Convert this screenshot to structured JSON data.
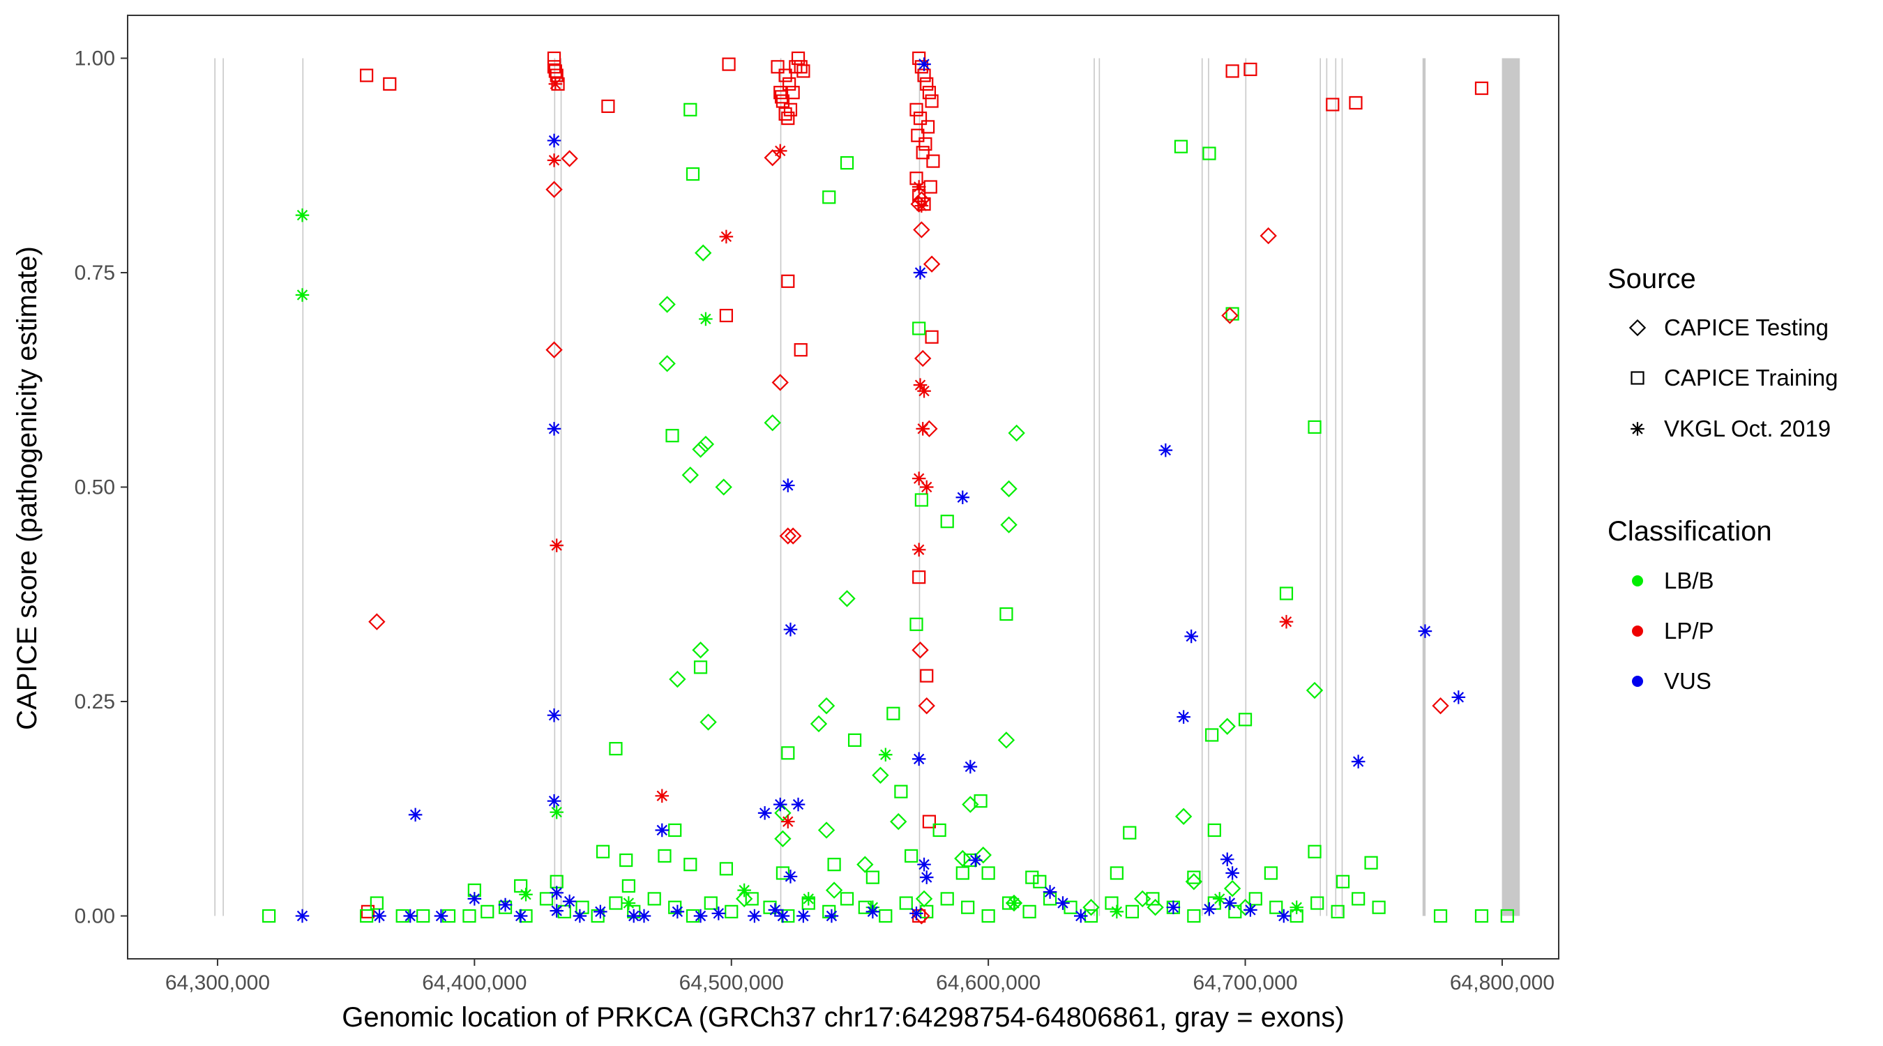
{
  "chart_data": {
    "type": "scatter",
    "title": "",
    "xlabel": "Genomic location of PRKCA (GRCh37 chr17:64298754-64806861, gray = exons)",
    "ylabel": "CAPICE score (pathogenicity estimate)",
    "xlim": [
      64265000,
      64822000
    ],
    "ylim": [
      -0.05,
      1.05
    ],
    "x_ticks": [
      64300000,
      64400000,
      64500000,
      64600000,
      64700000,
      64800000
    ],
    "x_tick_labels": [
      "64,300,000",
      "64,400,000",
      "64,500,000",
      "64,600,000",
      "64,700,000",
      "64,800,000"
    ],
    "y_ticks": [
      0,
      0.25,
      0.5,
      0.75,
      1.0
    ],
    "y_tick_labels": [
      "0.00",
      "0.25",
      "0.50",
      "0.75",
      "1.00"
    ],
    "grid": false,
    "exons": [
      [
        64298754,
        64299100
      ],
      [
        64302000,
        64302400
      ],
      [
        64333000,
        64333400
      ],
      [
        64431000,
        64431300
      ],
      [
        64433500,
        64433800
      ],
      [
        64519000,
        64519300
      ],
      [
        64573000,
        64573300
      ],
      [
        64641000,
        64641300
      ],
      [
        64643000,
        64643300
      ],
      [
        64683000,
        64683300
      ],
      [
        64685500,
        64685800
      ],
      [
        64700000,
        64700300
      ],
      [
        64729000,
        64729300
      ],
      [
        64731500,
        64731800
      ],
      [
        64735000,
        64735300
      ],
      [
        64737500,
        64737800
      ],
      [
        64769000,
        64770200
      ],
      [
        64799900,
        64806861
      ]
    ],
    "legend": {
      "position": "right",
      "source_title": "Source",
      "source_entries": [
        {
          "label": "CAPICE Testing",
          "shape": "diamond"
        },
        {
          "label": "CAPICE Training",
          "shape": "square"
        },
        {
          "label": "VKGL Oct. 2019",
          "shape": "asterisk"
        }
      ],
      "class_title": "Classification",
      "class_entries": [
        {
          "label": "LB/B",
          "color": "#00ee00"
        },
        {
          "label": "LP/P",
          "color": "#ee0000"
        },
        {
          "label": "VUS",
          "color": "#0000ee"
        }
      ]
    },
    "colors": {
      "LB/B": "#00ee00",
      "LP/P": "#ee0000",
      "VUS": "#0000ee"
    },
    "series": [
      {
        "name": "CAPICE Training LP/P",
        "shape": "square",
        "class": "LP/P",
        "x": [
          64358000,
          64367000,
          64431000,
          64431000,
          64431500,
          64432000,
          64432500,
          64452000,
          64499000,
          64518000,
          64519000,
          64520000,
          64521000,
          64522000,
          64523000,
          64526000,
          64527000,
          64528000,
          64519500,
          64522500,
          64525000,
          64521000,
          64524000,
          64522000,
          64527000,
          64498000,
          64573000,
          64574000,
          64575000,
          64576000,
          64577000,
          64578000,
          64572000,
          64573500,
          64576500,
          64572500,
          64575500,
          64574500,
          64578500,
          64572000,
          64577500,
          64573000,
          64575000,
          64573000,
          64576000,
          64695000,
          64702000,
          64734000,
          64743000,
          64792000,
          64578000,
          64577000,
          64573000,
          64358500
        ],
        "y": [
          0.98,
          0.97,
          1.0,
          0.99,
          0.985,
          0.98,
          0.97,
          0.944,
          0.993,
          0.99,
          0.96,
          0.95,
          0.98,
          0.93,
          0.94,
          1.0,
          0.99,
          0.985,
          0.955,
          0.97,
          0.99,
          0.935,
          0.96,
          0.74,
          0.66,
          0.7,
          1.0,
          0.99,
          0.98,
          0.97,
          0.96,
          0.95,
          0.94,
          0.93,
          0.92,
          0.91,
          0.9,
          0.89,
          0.88,
          0.86,
          0.85,
          0.84,
          0.83,
          0.395,
          0.28,
          0.985,
          0.987,
          0.946,
          0.948,
          0.965,
          0.675,
          0.11,
          0.0,
          0.005
        ]
      },
      {
        "name": "CAPICE Training LB/B",
        "shape": "square",
        "class": "LB/B",
        "x": [
          64320000,
          64358000,
          64362000,
          64372000,
          64380000,
          64390000,
          64398000,
          64405000,
          64412000,
          64420000,
          64428000,
          64435000,
          64442000,
          64448000,
          64455000,
          64462000,
          64470000,
          64478000,
          64485000,
          64492000,
          64500000,
          64508000,
          64515000,
          64522000,
          64530000,
          64538000,
          64545000,
          64552000,
          64560000,
          64568000,
          64576000,
          64584000,
          64592000,
          64600000,
          64608000,
          64616000,
          64624000,
          64632000,
          64640000,
          64648000,
          64656000,
          64664000,
          64672000,
          64680000,
          64688000,
          64696000,
          64704000,
          64712000,
          64720000,
          64728000,
          64736000,
          64744000,
          64752000,
          64776000,
          64792000,
          64802000,
          64484000,
          64485000,
          64545000,
          64538000,
          64477000,
          64455000,
          64488000,
          64522000,
          64548000,
          64566000,
          64572000,
          64574000,
          64573000,
          64584000,
          64597000,
          64607000,
          64675000,
          64686000,
          64695000,
          64700000,
          64716000,
          64727000,
          64687000,
          64655000,
          64593000,
          64563000,
          64581000,
          64478000,
          64450000,
          64459000,
          64474000,
          64498000,
          64540000,
          64570000,
          64600000,
          64617000,
          64688000,
          64727000,
          64749000,
          64400000,
          64418000,
          64432000,
          64460000,
          64484000,
          64520000,
          64555000,
          64590000,
          64620000,
          64650000,
          64680000,
          64710000,
          64738000
        ],
        "y": [
          0.0,
          0.0,
          0.015,
          0.0,
          0.0,
          0.0,
          0.0,
          0.005,
          0.01,
          0.0,
          0.02,
          0.005,
          0.01,
          0.0,
          0.015,
          0.005,
          0.02,
          0.01,
          0.0,
          0.015,
          0.005,
          0.02,
          0.01,
          0.0,
          0.015,
          0.005,
          0.02,
          0.01,
          0.0,
          0.015,
          0.005,
          0.02,
          0.01,
          0.0,
          0.015,
          0.005,
          0.02,
          0.01,
          0.0,
          0.015,
          0.005,
          0.02,
          0.01,
          0.0,
          0.015,
          0.005,
          0.02,
          0.01,
          0.0,
          0.015,
          0.005,
          0.02,
          0.01,
          0.0,
          0.0,
          0.0,
          0.94,
          0.865,
          0.878,
          0.838,
          0.56,
          0.195,
          0.29,
          0.19,
          0.205,
          0.145,
          0.34,
          0.485,
          0.685,
          0.46,
          0.134,
          0.352,
          0.897,
          0.889,
          0.702,
          0.229,
          0.376,
          0.57,
          0.211,
          0.097,
          0.065,
          0.236,
          0.1,
          0.1,
          0.075,
          0.065,
          0.07,
          0.055,
          0.06,
          0.07,
          0.05,
          0.045,
          0.1,
          0.075,
          0.062,
          0.03,
          0.035,
          0.04,
          0.035,
          0.06,
          0.05,
          0.045,
          0.05,
          0.04,
          0.05,
          0.045,
          0.05,
          0.04
        ]
      },
      {
        "name": "CAPICE Testing LP/P",
        "shape": "diamond",
        "class": "LP/P",
        "x": [
          64431000,
          64431000,
          64437000,
          64516000,
          64519000,
          64522000,
          64524000,
          64573000,
          64574000,
          64574500,
          64576000,
          64577000,
          64578000,
          64573500,
          64574000,
          64362000,
          64709000,
          64776000,
          64694000,
          64574000
        ],
        "y": [
          0.847,
          0.66,
          0.883,
          0.884,
          0.622,
          0.443,
          0.443,
          0.83,
          0.8,
          0.65,
          0.245,
          0.568,
          0.76,
          0.31,
          0.835,
          0.343,
          0.793,
          0.245,
          0.7,
          0.0
        ]
      },
      {
        "name": "CAPICE Testing LB/B",
        "shape": "diamond",
        "class": "LB/B",
        "x": [
          64475000,
          64475000,
          64489000,
          64484000,
          64488000,
          64490000,
          64497000,
          64488000,
          64479000,
          64491000,
          64516000,
          64545000,
          64537000,
          64534000,
          64520000,
          64558000,
          64593000,
          64590000,
          64598000,
          64607000,
          64608000,
          64608000,
          64611000,
          64676000,
          64693000,
          64727000,
          64695000,
          64520000,
          64537000,
          64565000,
          64552000,
          64680000,
          64665000,
          64505000,
          64540000,
          64575000,
          64610000,
          64640000,
          64660000,
          64700000
        ],
        "y": [
          0.713,
          0.644,
          0.773,
          0.514,
          0.544,
          0.55,
          0.5,
          0.31,
          0.276,
          0.226,
          0.575,
          0.37,
          0.245,
          0.224,
          0.09,
          0.164,
          0.13,
          0.067,
          0.071,
          0.205,
          0.498,
          0.456,
          0.563,
          0.116,
          0.221,
          0.263,
          0.032,
          0.12,
          0.1,
          0.11,
          0.06,
          0.04,
          0.01,
          0.02,
          0.03,
          0.02,
          0.015,
          0.01,
          0.02,
          0.01
        ]
      },
      {
        "name": "VKGL LP/P",
        "shape": "asterisk",
        "class": "LP/P",
        "x": [
          64431000,
          64432000,
          64498000,
          64519000,
          64522000,
          64473000,
          64573000,
          64574000,
          64573500,
          64575000,
          64574500,
          64573000,
          64576000,
          64573000,
          64716000,
          64431500
        ],
        "y": [
          0.881,
          0.432,
          0.792,
          0.892,
          0.11,
          0.14,
          0.85,
          0.828,
          0.619,
          0.612,
          0.568,
          0.51,
          0.5,
          0.427,
          0.343,
          0.97
        ]
      },
      {
        "name": "VKGL LB/B",
        "shape": "asterisk",
        "class": "LB/B",
        "x": [
          64333000,
          64333000,
          64432000,
          64490000,
          64560000,
          64420000,
          64460000,
          64505000,
          64530000,
          64555000,
          64610000,
          64650000,
          64690000,
          64720000
        ],
        "y": [
          0.817,
          0.724,
          0.121,
          0.696,
          0.188,
          0.025,
          0.015,
          0.03,
          0.02,
          0.01,
          0.015,
          0.005,
          0.02,
          0.01
        ]
      },
      {
        "name": "VKGL VUS",
        "shape": "asterisk",
        "class": "VUS",
        "x": [
          64333000,
          64363000,
          64375000,
          64377000,
          64387000,
          64400000,
          64412000,
          64418000,
          64431000,
          64431000,
          64431000,
          64431000,
          64432000,
          64432000,
          64437000,
          64441000,
          64449000,
          64462000,
          64473000,
          64479000,
          64488000,
          64495000,
          64509000,
          64513000,
          64517000,
          64519000,
          64522000,
          64523000,
          64523000,
          64526000,
          64528000,
          64539000,
          64555000,
          64573000,
          64573500,
          64575000,
          64576000,
          64572000,
          64590000,
          64593000,
          64595000,
          64624000,
          64629000,
          64636000,
          64669000,
          64676000,
          64679000,
          64686000,
          64693000,
          64695000,
          64702000,
          64715000,
          64744000,
          64770000,
          64783000,
          64466000,
          64520000,
          64575000,
          64694000,
          64672000
        ],
        "y": [
          0.0,
          0.0,
          0.0,
          0.118,
          0.0,
          0.02,
          0.013,
          0.0,
          0.904,
          0.568,
          0.234,
          0.134,
          0.027,
          0.006,
          0.017,
          0.0,
          0.005,
          0.0,
          0.1,
          0.005,
          0.0,
          0.003,
          0.0,
          0.12,
          0.007,
          0.13,
          0.502,
          0.334,
          0.046,
          0.13,
          0.0,
          0.0,
          0.005,
          0.183,
          0.75,
          0.993,
          0.045,
          0.003,
          0.488,
          0.174,
          0.065,
          0.028,
          0.015,
          0.0,
          0.543,
          0.232,
          0.326,
          0.008,
          0.066,
          0.05,
          0.007,
          0.0,
          0.18,
          0.332,
          0.255,
          0.0,
          0.0,
          0.06,
          0.015,
          0.01
        ]
      }
    ]
  }
}
